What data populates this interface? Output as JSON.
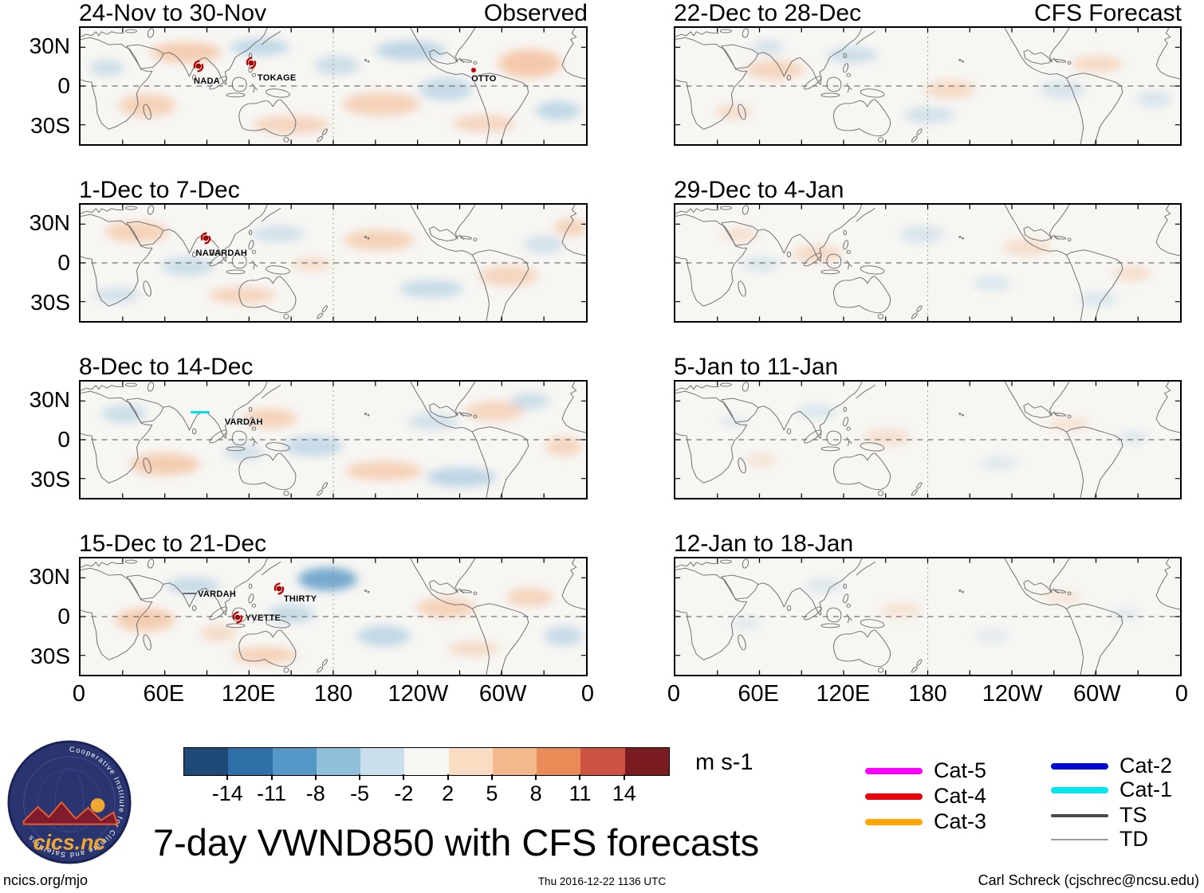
{
  "title": "7-day VWND850 with CFS forecasts",
  "columns": {
    "left": "Observed",
    "right": "CFS Forecast"
  },
  "panels": [
    {
      "title": "24-Nov to 30-Nov",
      "corner": "Observed",
      "storms": [
        {
          "name": "NADA"
        },
        {
          "name": "TOKAGE"
        },
        {
          "name": "OTTO"
        }
      ]
    },
    {
      "title": "1-Dec to 7-Dec",
      "storms": [
        {
          "name": "NADA"
        },
        {
          "name": "VARDAH"
        }
      ]
    },
    {
      "title": "8-Dec to 14-Dec",
      "storms": [
        {
          "name": "VARDAH"
        }
      ]
    },
    {
      "title": "15-Dec to 21-Dec",
      "storms": [
        {
          "name": "VARDAH"
        },
        {
          "name": "THIRTY"
        },
        {
          "name": "YVETTE"
        }
      ]
    },
    {
      "title": "22-Dec to 28-Dec",
      "corner": "CFS Forecast",
      "storms": []
    },
    {
      "title": "29-Dec to 4-Jan",
      "storms": []
    },
    {
      "title": "5-Jan to 11-Jan",
      "storms": []
    },
    {
      "title": "12-Jan to 18-Jan",
      "storms": []
    }
  ],
  "axes": {
    "y_ticks": [
      "30N",
      "0",
      "30S"
    ],
    "x_ticks": [
      "0",
      "60E",
      "120E",
      "180",
      "120W",
      "60W",
      "0"
    ]
  },
  "colorbar": {
    "ticks": [
      "-14",
      "-11",
      "-8",
      "-5",
      "-2",
      "2",
      "5",
      "8",
      "11",
      "14"
    ],
    "colors": [
      "#1d4a77",
      "#2e6fa8",
      "#5597c6",
      "#8fc0da",
      "#cadfec",
      "#f8f6f2",
      "#fadcc3",
      "#f5b88c",
      "#e98b57",
      "#cc5242",
      "#7a1b22"
    ],
    "units": "m s-1"
  },
  "legend": {
    "items": [
      {
        "label": "Cat-5",
        "color": "#ff00ff"
      },
      {
        "label": "Cat-4",
        "color": "#e8000d"
      },
      {
        "label": "Cat-3",
        "color": "#ffa600"
      },
      {
        "label": "Cat-2",
        "color": "#0008cf"
      },
      {
        "label": "Cat-1",
        "color": "#00e5ee"
      },
      {
        "label": "TS",
        "color": "#4a4a4a"
      },
      {
        "label": "TD",
        "color": "#9b9b9b"
      }
    ]
  },
  "logo": {
    "text": "cics.nc",
    "ring_text": "Cooperative Institute for Climate and Satellites"
  },
  "footer": {
    "site": "ncics.org/mjo",
    "timestamp": "Thu 2016-12-22 1136 UTC",
    "credit": "Carl Schreck (cjschrec@ncsu.edu)"
  },
  "chart_data": {
    "type": "heatmap",
    "variable": "VWND850 (850 hPa meridional wind) 7-day anomaly",
    "units": "m s-1",
    "layout": "2 columns x 4 rows of world-strip maps; left column Observed, right column CFS Forecast",
    "x_axis": {
      "label": "longitude",
      "ticks": [
        "0",
        "60E",
        "120E",
        "180",
        "120W",
        "60W",
        "0"
      ],
      "range_deg": [
        0,
        360
      ]
    },
    "y_axis": {
      "label": "latitude",
      "ticks": [
        "30N",
        "0",
        "30S"
      ],
      "range_deg": [
        -45,
        45
      ]
    },
    "colorbar": {
      "levels": [
        -14,
        -11,
        -8,
        -5,
        -2,
        2,
        5,
        8,
        11,
        14
      ],
      "colors": [
        "#1d4a77",
        "#2e6fa8",
        "#5597c6",
        "#8fc0da",
        "#cadfec",
        "#f8f6f2",
        "#fadcc3",
        "#f5b88c",
        "#e98b57",
        "#cc5242",
        "#7a1b22"
      ]
    },
    "panels": [
      {
        "title": "24-Nov to 30-Nov",
        "column": "Observed",
        "storm_labels": [
          "NADA",
          "TOKAGE",
          "OTTO"
        ]
      },
      {
        "title": "1-Dec to 7-Dec",
        "column": "Observed",
        "storm_labels": [
          "NADA",
          "VARDAH"
        ]
      },
      {
        "title": "8-Dec to 14-Dec",
        "column": "Observed",
        "storm_labels": [
          "VARDAH"
        ]
      },
      {
        "title": "15-Dec to 21-Dec",
        "column": "Observed",
        "storm_labels": [
          "VARDAH",
          "THIRTY",
          "YVETTE"
        ]
      },
      {
        "title": "22-Dec to 28-Dec",
        "column": "CFS Forecast",
        "storm_labels": []
      },
      {
        "title": "29-Dec to 4-Jan",
        "column": "CFS Forecast",
        "storm_labels": []
      },
      {
        "title": "5-Jan to 11-Jan",
        "column": "CFS Forecast",
        "storm_labels": []
      },
      {
        "title": "12-Jan to 18-Jan",
        "column": "CFS Forecast",
        "storm_labels": []
      }
    ],
    "track_legend": [
      {
        "label": "Cat-5",
        "color": "#ff00ff"
      },
      {
        "label": "Cat-4",
        "color": "#e8000d"
      },
      {
        "label": "Cat-3",
        "color": "#ffa600"
      },
      {
        "label": "Cat-2",
        "color": "#0008cf"
      },
      {
        "label": "Cat-1",
        "color": "#00e5ee"
      },
      {
        "label": "TS",
        "color": "#4a4a4a"
      },
      {
        "label": "TD",
        "color": "#9b9b9b"
      }
    ]
  }
}
